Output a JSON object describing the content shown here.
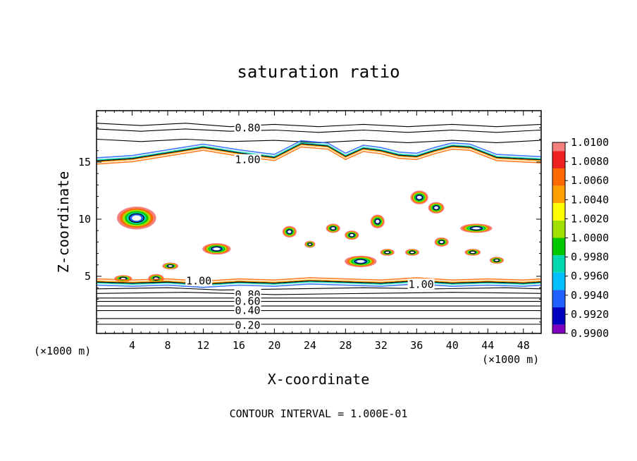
{
  "chart_data": {
    "type": "contour",
    "title": "saturation ratio",
    "xlabel": "X-coordinate",
    "ylabel": "Z-coordinate",
    "x_unit_label": "(×1000 m)",
    "footer": "CONTOUR INTERVAL = 1.000E-01",
    "xlim": [
      0,
      50
    ],
    "ylim": [
      0,
      19.5
    ],
    "xticks": [
      4,
      8,
      12,
      16,
      20,
      24,
      28,
      32,
      36,
      40,
      44,
      48
    ],
    "yticks": [
      5,
      10,
      15
    ],
    "contour_interval": 0.1,
    "contour_labels": [
      {
        "text": "0.80",
        "x": 17.0,
        "y": 18.0
      },
      {
        "text": "1.00",
        "x": 17.0,
        "y": 15.2
      },
      {
        "text": "1.00",
        "x": 11.5,
        "y": 4.6
      },
      {
        "text": "1.00",
        "x": 36.5,
        "y": 4.3
      },
      {
        "text": "0.80",
        "x": 17.0,
        "y": 3.4
      },
      {
        "text": "0.60",
        "x": 17.0,
        "y": 2.8
      },
      {
        "text": "0.40",
        "x": 17.0,
        "y": 2.0
      },
      {
        "text": "0.20",
        "x": 17.0,
        "y": 0.7
      }
    ],
    "colorbar": {
      "levels": [
        "1.0100",
        "1.0080",
        "1.0060",
        "1.0040",
        "1.0020",
        "1.0000",
        "0.9980",
        "0.9960",
        "0.9940",
        "0.9920",
        "0.9900"
      ],
      "colors": [
        "#f58080",
        "#ee2020",
        "#ff6a00",
        "#ffa000",
        "#ffff00",
        "#a0e000",
        "#00c800",
        "#00d8b0",
        "#00c0ff",
        "#2060ff",
        "#0000c0",
        "#8000c0"
      ]
    },
    "contours": [
      {
        "level": 0.2,
        "points": [
          [
            0,
            0.8
          ],
          [
            50,
            0.8
          ]
        ]
      },
      {
        "level": 0.3,
        "points": [
          [
            0,
            1.3
          ],
          [
            50,
            1.3
          ]
        ]
      },
      {
        "level": 0.4,
        "points": [
          [
            0,
            2.0
          ],
          [
            50,
            2.0
          ]
        ]
      },
      {
        "level": 0.5,
        "points": [
          [
            0,
            2.4
          ],
          [
            50,
            2.4
          ]
        ]
      },
      {
        "level": 0.6,
        "points": [
          [
            0,
            2.8
          ],
          [
            50,
            2.8
          ]
        ]
      },
      {
        "level": 0.7,
        "points": [
          [
            0,
            3.1
          ],
          [
            50,
            3.1
          ]
        ]
      },
      {
        "level": 0.8,
        "points": [
          [
            0,
            3.5
          ],
          [
            10,
            3.6
          ],
          [
            20,
            3.4
          ],
          [
            30,
            3.5
          ],
          [
            40,
            3.6
          ],
          [
            50,
            3.5
          ]
        ]
      },
      {
        "level": 0.9,
        "points": [
          [
            0,
            3.9
          ],
          [
            8,
            4.0
          ],
          [
            14,
            3.8
          ],
          [
            22,
            3.9
          ],
          [
            30,
            4.0
          ],
          [
            38,
            3.9
          ],
          [
            46,
            4.0
          ],
          [
            50,
            3.9
          ]
        ]
      },
      {
        "level": 1.0,
        "points": [
          [
            0,
            4.5
          ],
          [
            4,
            4.4
          ],
          [
            8,
            4.5
          ],
          [
            12,
            4.3
          ],
          [
            16,
            4.5
          ],
          [
            20,
            4.4
          ],
          [
            24,
            4.6
          ],
          [
            28,
            4.5
          ],
          [
            32,
            4.4
          ],
          [
            36,
            4.6
          ],
          [
            40,
            4.4
          ],
          [
            44,
            4.5
          ],
          [
            48,
            4.4
          ],
          [
            50,
            4.5
          ]
        ]
      },
      {
        "level": 0.7,
        "points": [
          [
            0,
            17.9
          ],
          [
            5,
            17.7
          ],
          [
            10,
            17.9
          ],
          [
            15,
            17.7
          ],
          [
            20,
            17.8
          ],
          [
            25,
            17.6
          ],
          [
            30,
            17.8
          ],
          [
            35,
            17.6
          ],
          [
            40,
            17.8
          ],
          [
            45,
            17.6
          ],
          [
            50,
            17.8
          ]
        ]
      },
      {
        "level": 0.8,
        "points": [
          [
            0,
            18.4
          ],
          [
            5,
            18.2
          ],
          [
            10,
            18.4
          ],
          [
            15,
            18.1
          ],
          [
            20,
            18.3
          ],
          [
            25,
            18.1
          ],
          [
            30,
            18.3
          ],
          [
            35,
            18.1
          ],
          [
            40,
            18.3
          ],
          [
            45,
            18.1
          ],
          [
            50,
            18.3
          ]
        ]
      },
      {
        "level": 0.9,
        "points": [
          [
            0,
            17.0
          ],
          [
            5,
            16.8
          ],
          [
            10,
            17.0
          ],
          [
            15,
            16.8
          ],
          [
            20,
            16.9
          ],
          [
            25,
            16.7
          ],
          [
            30,
            16.9
          ],
          [
            35,
            16.7
          ],
          [
            40,
            16.9
          ],
          [
            45,
            16.7
          ],
          [
            50,
            16.9
          ]
        ]
      },
      {
        "level": 1.0,
        "points": [
          [
            0,
            15.1
          ],
          [
            4,
            15.3
          ],
          [
            8,
            15.8
          ],
          [
            12,
            16.3
          ],
          [
            16,
            15.8
          ],
          [
            20,
            15.4
          ],
          [
            23,
            16.6
          ],
          [
            26,
            16.4
          ],
          [
            28,
            15.5
          ],
          [
            30,
            16.2
          ],
          [
            32,
            16.0
          ],
          [
            34,
            15.6
          ],
          [
            36,
            15.5
          ],
          [
            38,
            16.0
          ],
          [
            40,
            16.4
          ],
          [
            42,
            16.3
          ],
          [
            45,
            15.4
          ],
          [
            50,
            15.2
          ]
        ]
      }
    ],
    "supersaturated_patches": [
      {
        "x": 4.5,
        "y": 10.1,
        "rx": 2.2,
        "ry": 1.0
      },
      {
        "x": 13.5,
        "y": 7.4,
        "rx": 1.6,
        "ry": 0.5
      },
      {
        "x": 8.3,
        "y": 5.9,
        "rx": 0.9,
        "ry": 0.3
      },
      {
        "x": 21.7,
        "y": 8.9,
        "rx": 0.8,
        "ry": 0.5
      },
      {
        "x": 24.0,
        "y": 7.8,
        "rx": 0.6,
        "ry": 0.3
      },
      {
        "x": 26.6,
        "y": 9.2,
        "rx": 0.8,
        "ry": 0.4
      },
      {
        "x": 28.7,
        "y": 8.6,
        "rx": 0.8,
        "ry": 0.4
      },
      {
        "x": 31.6,
        "y": 9.8,
        "rx": 0.8,
        "ry": 0.6
      },
      {
        "x": 29.7,
        "y": 6.3,
        "rx": 1.8,
        "ry": 0.5
      },
      {
        "x": 36.3,
        "y": 11.9,
        "rx": 1.0,
        "ry": 0.6
      },
      {
        "x": 38.2,
        "y": 11.0,
        "rx": 0.9,
        "ry": 0.5
      },
      {
        "x": 38.8,
        "y": 8.0,
        "rx": 0.8,
        "ry": 0.4
      },
      {
        "x": 32.7,
        "y": 7.1,
        "rx": 0.8,
        "ry": 0.3
      },
      {
        "x": 35.5,
        "y": 7.1,
        "rx": 0.8,
        "ry": 0.3
      },
      {
        "x": 42.7,
        "y": 9.2,
        "rx": 1.8,
        "ry": 0.4
      },
      {
        "x": 42.3,
        "y": 7.1,
        "rx": 0.9,
        "ry": 0.3
      },
      {
        "x": 45.0,
        "y": 6.4,
        "rx": 0.8,
        "ry": 0.3
      },
      {
        "x": 3.0,
        "y": 4.8,
        "rx": 1.0,
        "ry": 0.3
      },
      {
        "x": 6.7,
        "y": 4.8,
        "rx": 0.9,
        "ry": 0.4
      }
    ]
  }
}
